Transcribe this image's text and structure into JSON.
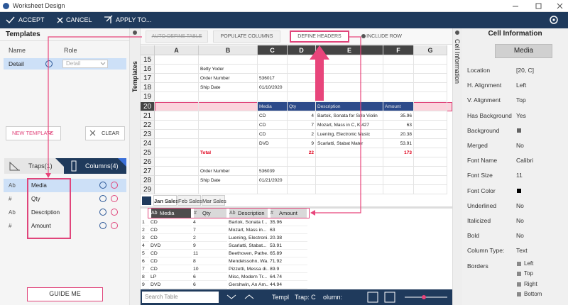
{
  "window": {
    "title": "Worksheet Design"
  },
  "toolbar": {
    "accept": "ACCEPT",
    "cancel": "CANCEL",
    "apply": "APPLY TO..."
  },
  "templates": {
    "title": "Templates",
    "side_label": "Templates",
    "name_header": "Name",
    "role_header": "Role",
    "rows": [
      {
        "name": "Detail",
        "role": "Detail"
      }
    ],
    "new_template": "NEW TEMPLATE",
    "clear": "CLEAR"
  },
  "tabs": {
    "traps": "Traps(1)",
    "columns": "Columns(4)"
  },
  "columns": [
    {
      "type": "Ab",
      "name": "Media"
    },
    {
      "type": "#",
      "name": "Qty"
    },
    {
      "type": "Ab",
      "name": "Description"
    },
    {
      "type": "#",
      "name": "Amount"
    }
  ],
  "guide_me": "GUIDE ME",
  "actions": [
    "AUTO-DEFINE TABLE",
    "POPULATE COLUMNS",
    "DEFINE HEADERS",
    "INCLUDE ROW"
  ],
  "sheet": {
    "column_headers": [
      "A",
      "B",
      "C",
      "D",
      "E",
      "F",
      "G"
    ],
    "rows": [
      {
        "n": "15"
      },
      {
        "n": "16",
        "B": "Betty Yoder"
      },
      {
        "n": "17",
        "B": "Order Number",
        "C": "536017"
      },
      {
        "n": "18",
        "B": "Ship Date",
        "C": "01/10/2020"
      },
      {
        "n": "19"
      },
      {
        "n": "20",
        "C": "Media",
        "D": "Qty",
        "E": "Description",
        "F": "Amount",
        "selected": true
      },
      {
        "n": "21",
        "C": "CD",
        "D": "4",
        "E": "Bartok, Sonata for Solo Violin",
        "F": "35.96"
      },
      {
        "n": "22",
        "C": "CD",
        "D": "7",
        "E": "Mozart, Mass in C, K.427",
        "F": "63"
      },
      {
        "n": "23",
        "C": "CD",
        "D": "2",
        "E": "Luening, Electronic Music",
        "F": "20.38"
      },
      {
        "n": "24",
        "C": "DVD",
        "D": "9",
        "E": "Scarlatti, Stabat Mater",
        "F": "53.91"
      },
      {
        "n": "25",
        "B": "Total",
        "D": "22",
        "F": "173",
        "color": "#e0001b"
      },
      {
        "n": "26"
      },
      {
        "n": "27",
        "B": "Order Number",
        "C": "536039"
      },
      {
        "n": "28",
        "B": "Ship Date",
        "C": "01/21/2020"
      },
      {
        "n": "29"
      }
    ],
    "tabs": [
      "Jan Sales",
      "Feb Sales",
      "Mar Sales"
    ]
  },
  "preview": {
    "rows": [
      [
        "1",
        "CD",
        "4",
        "Bartok, Sonata f...",
        "35.96"
      ],
      [
        "2",
        "CD",
        "7",
        "Mozart, Mass in...",
        "63"
      ],
      [
        "3",
        "CD",
        "2",
        "Luening, Electroni...",
        "20.38"
      ],
      [
        "4",
        "DVD",
        "9",
        "Scarlatti, Stabat...",
        "53.91"
      ],
      [
        "5",
        "CD",
        "11",
        "Beethoven, Pathe...",
        "65.89"
      ],
      [
        "6",
        "CD",
        "8",
        "Mendelssohn, Wa...",
        "71.92"
      ],
      [
        "7",
        "CD",
        "10",
        "Pizzetti, Messa di...",
        "89.9"
      ],
      [
        "8",
        "LP",
        "6",
        "Misc, Modern Tr...",
        "64.74"
      ],
      [
        "9",
        "DVD",
        "6",
        "Gershwin, An Am...",
        "44.94"
      ]
    ]
  },
  "status": {
    "search": "Search Table",
    "template": "Templ",
    "trap": "Trap: C",
    "column": "olumn:"
  },
  "cell_info": {
    "title": "Cell Information",
    "side_label": "Cell Information",
    "selected": "Media",
    "props": [
      {
        "label": "Location",
        "value": "[20, C]"
      },
      {
        "label": "H. Alignment",
        "value": "Left"
      },
      {
        "label": "V. Alignment",
        "value": "Top"
      },
      {
        "label": "Has Background",
        "value": "Yes"
      },
      {
        "label": "Background",
        "swatch": "#666666"
      },
      {
        "label": "Merged",
        "value": "No"
      },
      {
        "label": "Font Name",
        "value": "Calibri"
      },
      {
        "label": "Font Size",
        "value": "11"
      },
      {
        "label": "Font Color",
        "swatch": "#000000"
      },
      {
        "label": "Underlined",
        "value": "No"
      },
      {
        "label": "Italicized",
        "value": "No"
      },
      {
        "label": "Bold",
        "value": "No"
      },
      {
        "label": "Column Type:",
        "value": "Text"
      },
      {
        "label": "Borders",
        "options": [
          "Left",
          "Top",
          "Right",
          "Bottom"
        ]
      }
    ]
  }
}
